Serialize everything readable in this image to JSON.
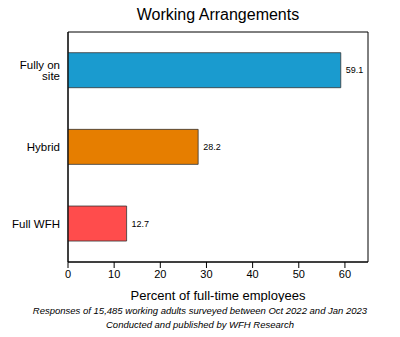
{
  "chart_data": {
    "type": "bar",
    "orientation": "horizontal",
    "title": "Working Arrangements",
    "categories": [
      "Fully on site",
      "Hybrid",
      "Full WFH"
    ],
    "values": [
      59.1,
      28.2,
      12.7
    ],
    "colors": [
      "#1a9bcf",
      "#e67e00",
      "#ff4c4c"
    ],
    "xlabel": "Percent of full-time employees",
    "xlim": [
      0,
      65
    ],
    "xticks": [
      0,
      10,
      20,
      30,
      40,
      50,
      60
    ],
    "grid": false,
    "data_labels": true,
    "annotations": [
      "Responses of 15,485 working adults surveyed between Oct 2022 and Jan 2023",
      "Conducted and published by WFH Research"
    ]
  }
}
